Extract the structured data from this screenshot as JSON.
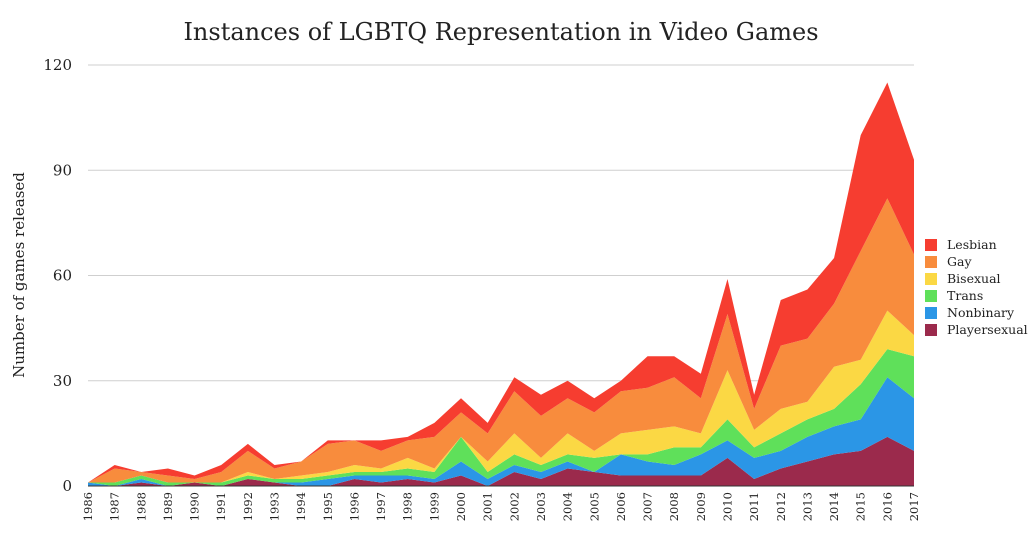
{
  "chart_data": {
    "type": "area",
    "stacked": true,
    "title": "Instances of LGBTQ Representation in Video Games",
    "xlabel": "",
    "ylabel": "Number of games released",
    "ylim": [
      0,
      120
    ],
    "yticks": [
      0,
      30,
      60,
      90,
      120
    ],
    "grid": true,
    "legend_position": "right",
    "x": [
      "1986",
      "1987",
      "1988",
      "1989",
      "1990",
      "1991",
      "1992",
      "1993",
      "1994",
      "1995",
      "1996",
      "1997",
      "1998",
      "1999",
      "2000",
      "2001",
      "2002",
      "2003",
      "2004",
      "2005",
      "2006",
      "2007",
      "2008",
      "2009",
      "2010",
      "2011",
      "2012",
      "2013",
      "2014",
      "2015",
      "2016",
      "2017"
    ],
    "series": [
      {
        "name": "Playersexual",
        "color": "#9b2a4c",
        "values": [
          0,
          0,
          1,
          0,
          1,
          0,
          2,
          1,
          0,
          0,
          2,
          1,
          2,
          1,
          3,
          0,
          4,
          2,
          5,
          4,
          3,
          3,
          3,
          3,
          8,
          2,
          5,
          7,
          9,
          10,
          14,
          10
        ]
      },
      {
        "name": "Nonbinary",
        "color": "#2b96e6",
        "values": [
          1,
          0,
          1,
          0,
          0,
          0,
          0,
          0,
          1,
          2,
          1,
          2,
          1,
          1,
          4,
          2,
          2,
          2,
          2,
          0,
          6,
          4,
          3,
          6,
          5,
          6,
          5,
          7,
          8,
          9,
          17,
          15
        ]
      },
      {
        "name": "Trans",
        "color": "#5fe05a",
        "values": [
          0,
          1,
          1,
          1,
          0,
          1,
          1,
          1,
          1,
          1,
          1,
          1,
          2,
          2,
          7,
          2,
          3,
          2,
          2,
          4,
          0,
          2,
          5,
          2,
          6,
          3,
          5,
          5,
          5,
          10,
          8,
          12
        ]
      },
      {
        "name": "Bisexual",
        "color": "#fbd844",
        "values": [
          0,
          0,
          0,
          0,
          0,
          0,
          1,
          0,
          1,
          1,
          2,
          1,
          3,
          1,
          0,
          3,
          6,
          2,
          6,
          2,
          6,
          7,
          6,
          4,
          14,
          5,
          7,
          5,
          12,
          7,
          11,
          6
        ]
      },
      {
        "name": "Gay",
        "color": "#f88c3d",
        "values": [
          0,
          4,
          1,
          2,
          1,
          3,
          6,
          3,
          4,
          8,
          7,
          5,
          5,
          9,
          7,
          8,
          12,
          12,
          10,
          11,
          12,
          12,
          14,
          10,
          16,
          6,
          18,
          18,
          18,
          31,
          32,
          23
        ]
      },
      {
        "name": "Lesbian",
        "color": "#f63d30",
        "values": [
          0,
          1,
          0,
          2,
          1,
          2,
          2,
          1,
          0,
          1,
          0,
          3,
          1,
          4,
          4,
          3,
          4,
          6,
          5,
          4,
          3,
          9,
          6,
          7,
          10,
          4,
          13,
          14,
          13,
          33,
          33,
          27
        ]
      }
    ]
  }
}
